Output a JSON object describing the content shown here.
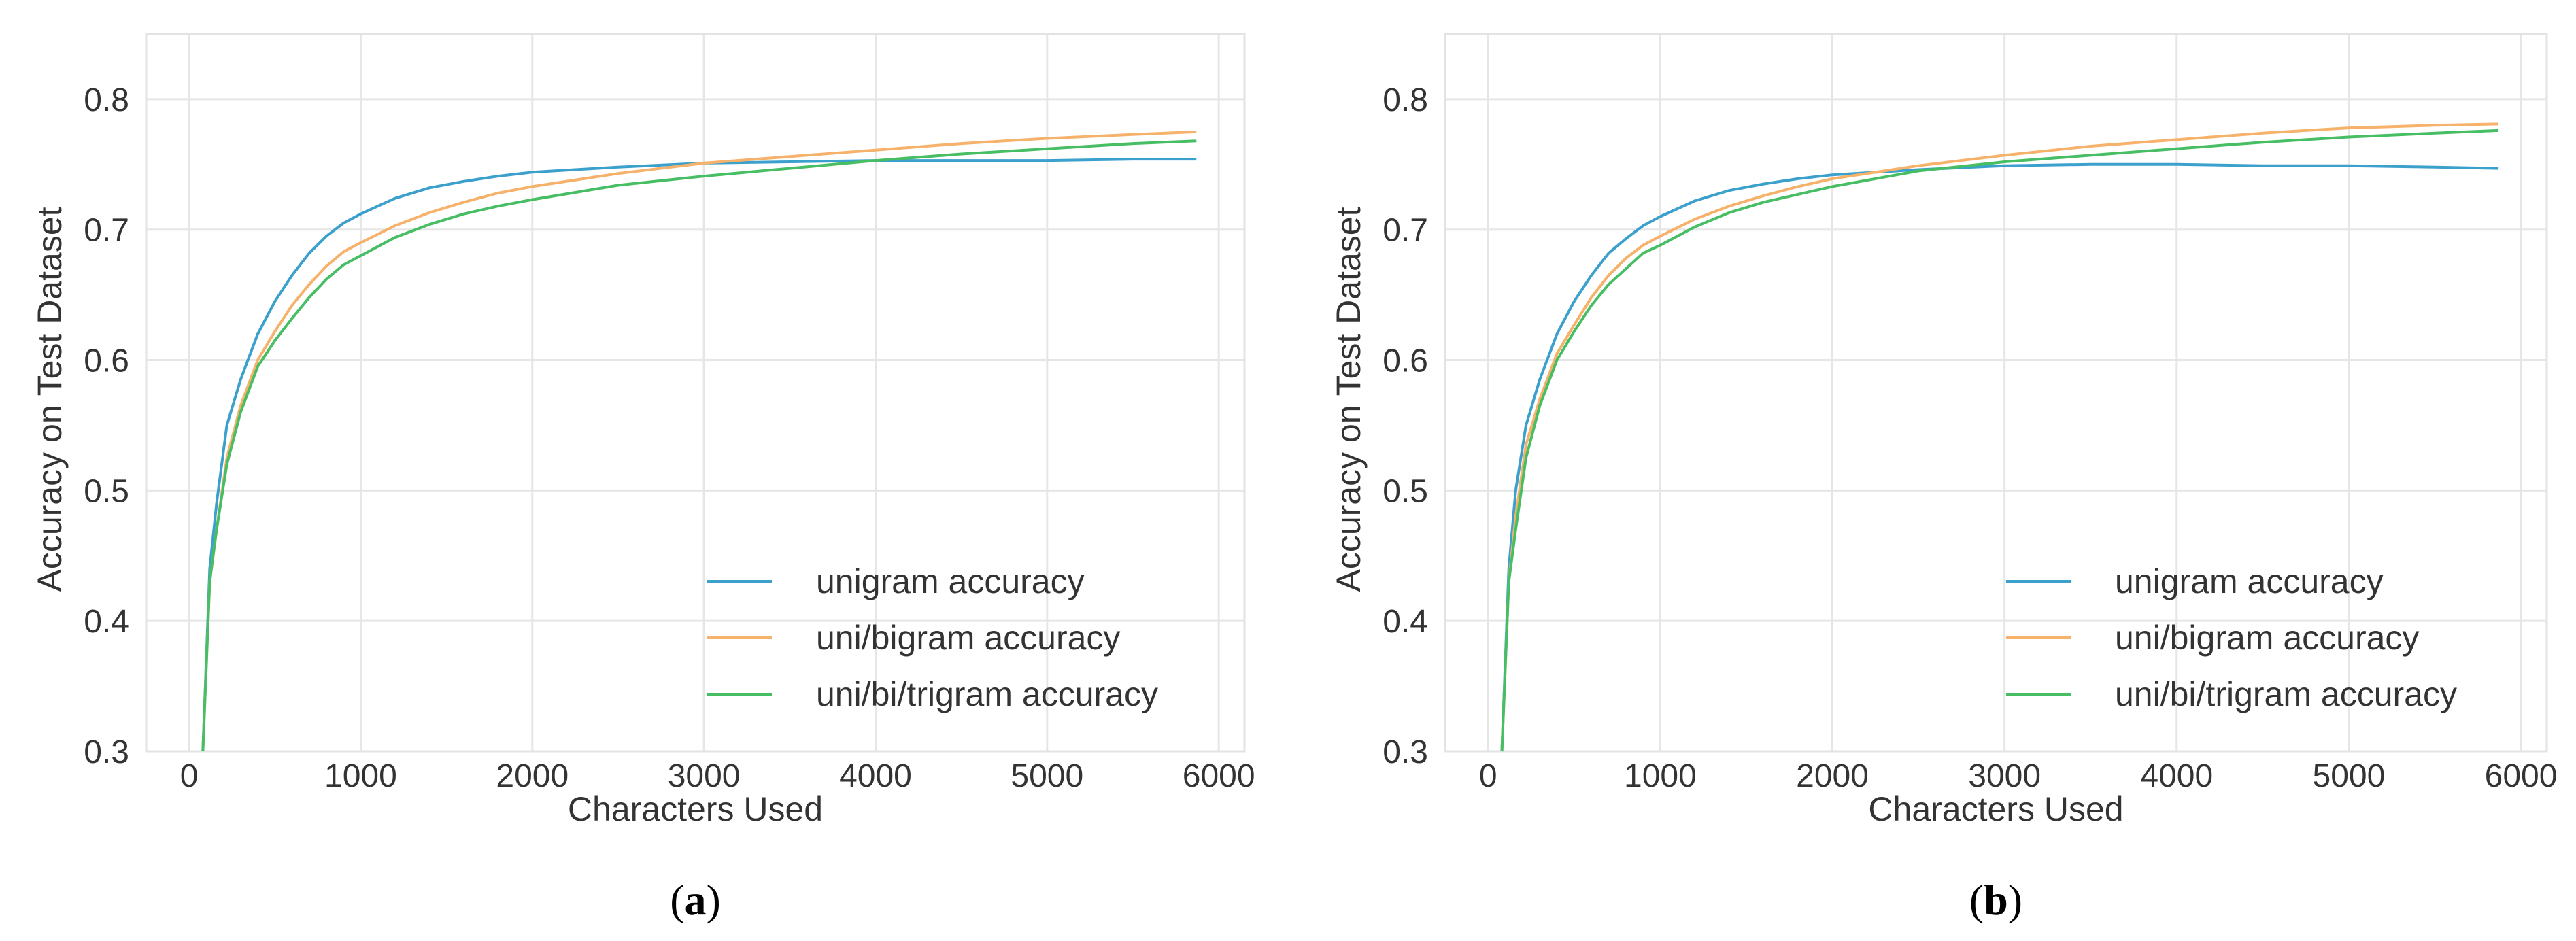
{
  "chart_data": [
    {
      "type": "line",
      "caption": "a",
      "xlabel": "Characters Used",
      "ylabel": "Accuracy on Test Dataset",
      "xlim": [
        -250,
        6150
      ],
      "ylim": [
        0.3,
        0.85
      ],
      "xticks": [
        0,
        1000,
        2000,
        3000,
        4000,
        5000,
        6000
      ],
      "xtick_labels": [
        "0",
        "1000",
        "2000",
        "3000",
        "4000",
        "5000",
        "6000"
      ],
      "yticks": [
        0.3,
        0.4,
        0.5,
        0.6,
        0.7,
        0.8
      ],
      "ytick_labels": [
        "0.3",
        "0.4",
        "0.5",
        "0.6",
        "0.7",
        "0.8"
      ],
      "grid": true,
      "legend_position": "bottom-right",
      "series": [
        {
          "name": "unigram accuracy",
          "color": "#3ca0cc",
          "x": [
            80,
            120,
            160,
            220,
            300,
            400,
            500,
            600,
            700,
            800,
            900,
            1000,
            1200,
            1400,
            1600,
            1800,
            2000,
            2500,
            3000,
            3500,
            4000,
            4500,
            5000,
            5500,
            5870
          ],
          "y": [
            0.3,
            0.44,
            0.49,
            0.55,
            0.585,
            0.62,
            0.645,
            0.665,
            0.682,
            0.695,
            0.705,
            0.712,
            0.724,
            0.732,
            0.737,
            0.741,
            0.744,
            0.748,
            0.751,
            0.752,
            0.753,
            0.753,
            0.753,
            0.754,
            0.754
          ]
        },
        {
          "name": "uni/bigram accuracy",
          "color": "#f6b26b",
          "x": [
            80,
            120,
            160,
            220,
            300,
            400,
            500,
            600,
            700,
            800,
            900,
            1000,
            1200,
            1400,
            1600,
            1800,
            2000,
            2500,
            3000,
            3500,
            4000,
            4500,
            5000,
            5500,
            5870
          ],
          "y": [
            0.3,
            0.43,
            0.47,
            0.525,
            0.565,
            0.6,
            0.622,
            0.642,
            0.658,
            0.672,
            0.683,
            0.69,
            0.703,
            0.713,
            0.721,
            0.728,
            0.733,
            0.743,
            0.751,
            0.756,
            0.761,
            0.766,
            0.77,
            0.773,
            0.775
          ]
        },
        {
          "name": "uni/bi/trigram accuracy",
          "color": "#47be63",
          "x": [
            80,
            120,
            160,
            220,
            300,
            400,
            500,
            600,
            700,
            800,
            900,
            1000,
            1200,
            1400,
            1600,
            1800,
            2000,
            2500,
            3000,
            3500,
            4000,
            4500,
            5000,
            5500,
            5870
          ],
          "y": [
            0.3,
            0.43,
            0.47,
            0.52,
            0.56,
            0.595,
            0.615,
            0.632,
            0.648,
            0.662,
            0.673,
            0.68,
            0.694,
            0.704,
            0.712,
            0.718,
            0.723,
            0.734,
            0.741,
            0.747,
            0.753,
            0.758,
            0.762,
            0.766,
            0.768
          ]
        }
      ]
    },
    {
      "type": "line",
      "caption": "b",
      "xlabel": "Characters Used",
      "ylabel": "Accuracy on Test Dataset",
      "xlim": [
        -250,
        6150
      ],
      "ylim": [
        0.3,
        0.85
      ],
      "xticks": [
        0,
        1000,
        2000,
        3000,
        4000,
        5000,
        6000
      ],
      "xtick_labels": [
        "0",
        "1000",
        "2000",
        "3000",
        "4000",
        "5000",
        "6000"
      ],
      "yticks": [
        0.3,
        0.4,
        0.5,
        0.6,
        0.7,
        0.8
      ],
      "ytick_labels": [
        "0.3",
        "0.4",
        "0.5",
        "0.6",
        "0.7",
        "0.8"
      ],
      "grid": true,
      "legend_position": "bottom-right",
      "series": [
        {
          "name": "unigram accuracy",
          "color": "#3ca0cc",
          "x": [
            80,
            120,
            160,
            220,
            300,
            400,
            500,
            600,
            700,
            800,
            900,
            1000,
            1200,
            1400,
            1600,
            1800,
            2000,
            2500,
            3000,
            3500,
            4000,
            4500,
            5000,
            5500,
            5870
          ],
          "y": [
            0.3,
            0.44,
            0.5,
            0.55,
            0.585,
            0.62,
            0.645,
            0.665,
            0.682,
            0.693,
            0.703,
            0.71,
            0.722,
            0.73,
            0.735,
            0.739,
            0.742,
            0.746,
            0.749,
            0.75,
            0.75,
            0.749,
            0.749,
            0.748,
            0.747
          ]
        },
        {
          "name": "uni/bigram accuracy",
          "color": "#f6b26b",
          "x": [
            80,
            120,
            160,
            220,
            300,
            400,
            500,
            600,
            700,
            800,
            900,
            1000,
            1200,
            1400,
            1600,
            1800,
            2000,
            2500,
            3000,
            3500,
            4000,
            4500,
            5000,
            5500,
            5870
          ],
          "y": [
            0.3,
            0.43,
            0.48,
            0.535,
            0.57,
            0.605,
            0.627,
            0.648,
            0.665,
            0.678,
            0.688,
            0.695,
            0.708,
            0.718,
            0.726,
            0.733,
            0.739,
            0.749,
            0.757,
            0.764,
            0.769,
            0.774,
            0.778,
            0.78,
            0.781
          ]
        },
        {
          "name": "uni/bi/trigram accuracy",
          "color": "#47be63",
          "x": [
            80,
            120,
            160,
            220,
            300,
            400,
            500,
            600,
            700,
            800,
            900,
            1000,
            1200,
            1400,
            1600,
            1800,
            2000,
            2500,
            3000,
            3500,
            4000,
            4500,
            5000,
            5500,
            5870
          ],
          "y": [
            0.3,
            0.43,
            0.47,
            0.525,
            0.565,
            0.6,
            0.622,
            0.642,
            0.658,
            0.67,
            0.682,
            0.688,
            0.702,
            0.713,
            0.721,
            0.727,
            0.733,
            0.745,
            0.752,
            0.757,
            0.762,
            0.767,
            0.771,
            0.774,
            0.776
          ]
        }
      ]
    }
  ]
}
